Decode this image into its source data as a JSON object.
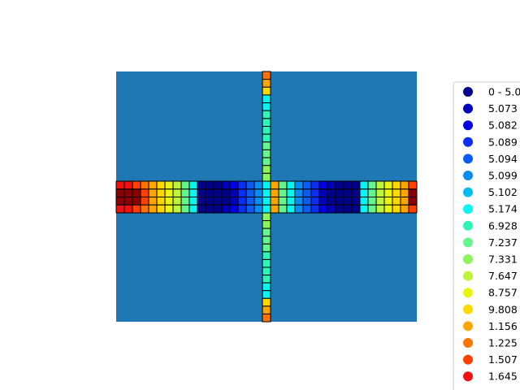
{
  "chart_data": {
    "type": "heatmap",
    "title": "",
    "xlabel": "",
    "ylabel": "",
    "grid": false,
    "axes_visible": false,
    "background_color": "#1f77b4",
    "cell_edge_color": "#000000",
    "legend_position": "right",
    "colormap": "jet",
    "legend_entries": [
      {
        "label": "0 - 5.0",
        "color": "#00008b"
      },
      {
        "label": "5.073",
        "color": "#0000bb"
      },
      {
        "label": "5.082",
        "color": "#0000e8"
      },
      {
        "label": "5.089",
        "color": "#0a2ef5"
      },
      {
        "label": "5.094",
        "color": "#0a5cf5"
      },
      {
        "label": "5.099",
        "color": "#0a8cf5"
      },
      {
        "label": "5.102",
        "color": "#00bdf0"
      },
      {
        "label": "5.174",
        "color": "#0af5f0"
      },
      {
        "label": "6.928",
        "color": "#30f5b8"
      },
      {
        "label": "7.237",
        "color": "#66f58c"
      },
      {
        "label": "7.331",
        "color": "#8cf55c"
      },
      {
        "label": "7.647",
        "color": "#bdf53a"
      },
      {
        "label": "8.757",
        "color": "#e8f510"
      },
      {
        "label": "9.808",
        "color": "#ffd800"
      },
      {
        "label": "1.156",
        "color": "#ffa500"
      },
      {
        "label": "1.225",
        "color": "#ff7300"
      },
      {
        "label": "1.507",
        "color": "#ff4000"
      },
      {
        "label": "1.645",
        "color": "#f01010"
      }
    ],
    "horizontal_band": {
      "columns": 37,
      "rows": 4,
      "column_levels": [
        17,
        17,
        16,
        15,
        14,
        13,
        12,
        11,
        9,
        7,
        0,
        0,
        0,
        1,
        2,
        3,
        4,
        5,
        7,
        14,
        9,
        7,
        5,
        4,
        3,
        2,
        1,
        0,
        0,
        0,
        7,
        9,
        11,
        12,
        13,
        14,
        16
      ]
    },
    "vertical_arm": {
      "top_levels": [
        15,
        14,
        13,
        7,
        7,
        8,
        8,
        8,
        8,
        9,
        9,
        9,
        10,
        10
      ],
      "bottom_levels": [
        10,
        10,
        9,
        9,
        9,
        8,
        8,
        8,
        8,
        7,
        7,
        13,
        14,
        15
      ]
    }
  }
}
